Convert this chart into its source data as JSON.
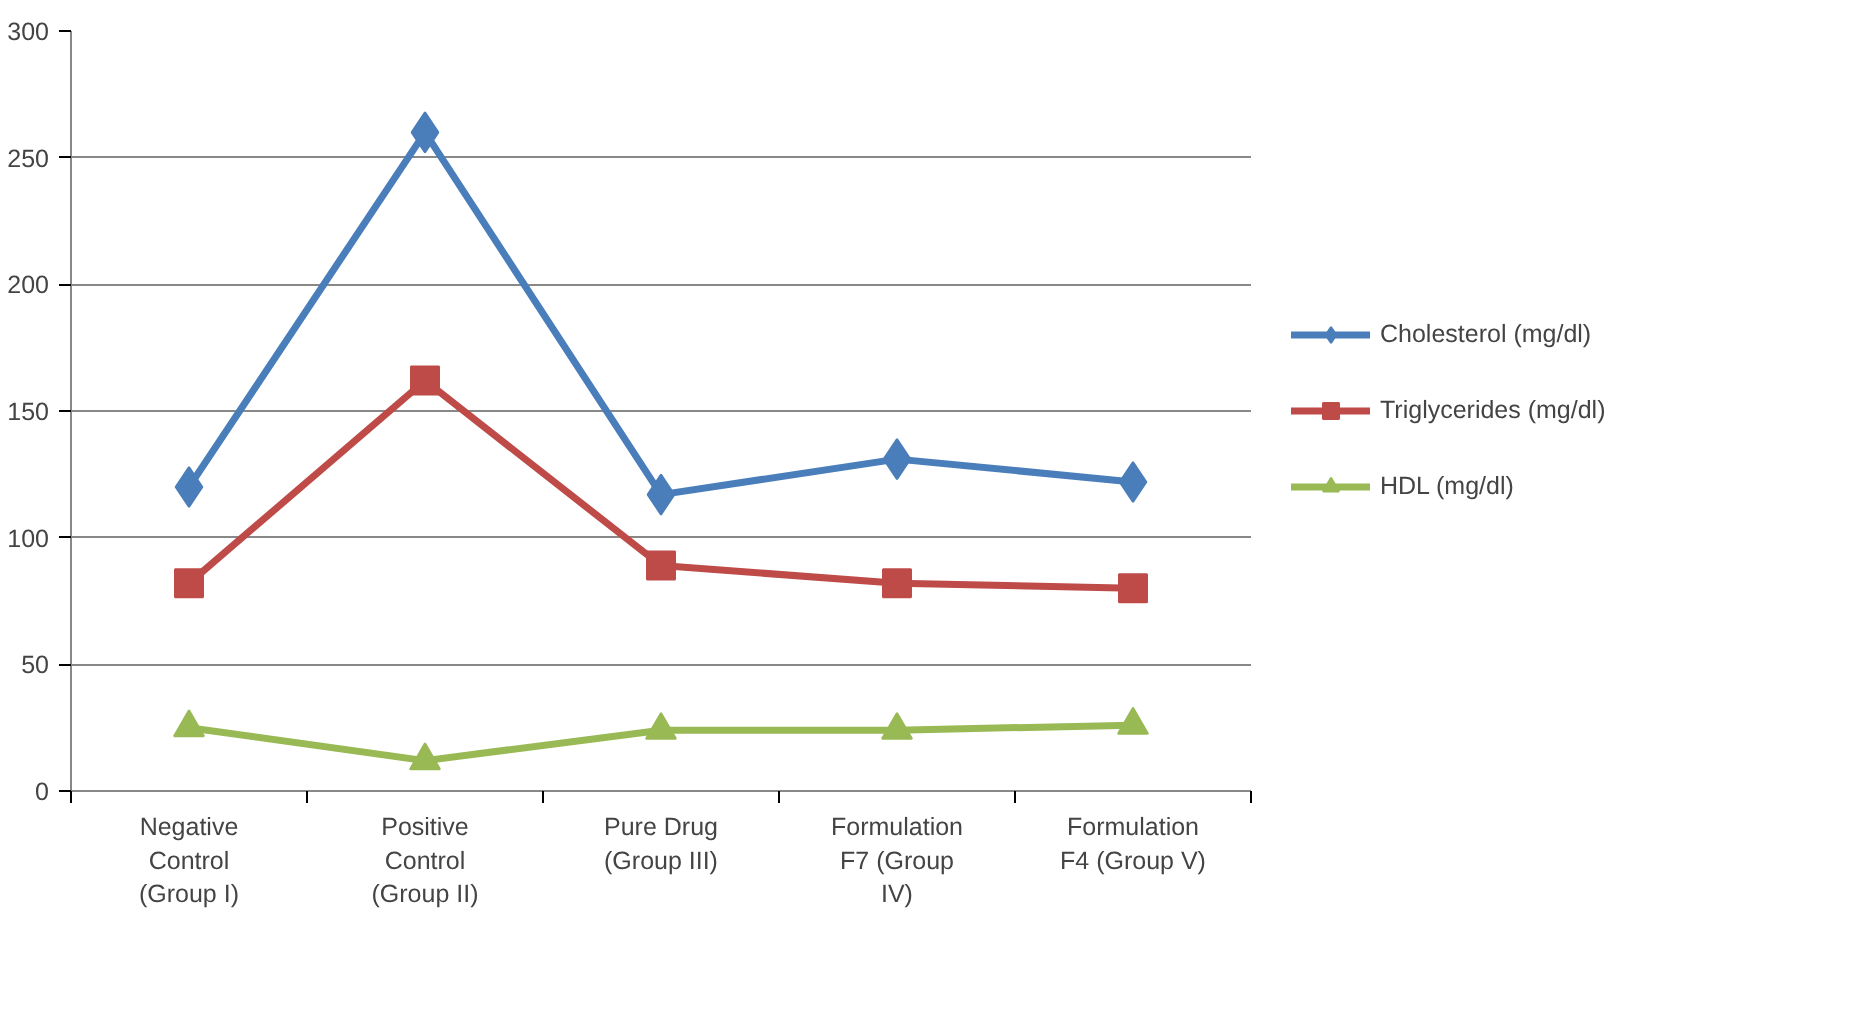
{
  "chart_data": {
    "type": "line",
    "categories": [
      "Negative Control (Group I)",
      "Positive Control (Group II)",
      "Pure Drug (Group III)",
      "Formulation F7 (Group IV)",
      "Formulation F4 (Group V)"
    ],
    "series": [
      {
        "name": "Cholesterol (mg/dl)",
        "color": "#4a7ebb",
        "marker": "diamond",
        "values": [
          120,
          260,
          117,
          131,
          122
        ]
      },
      {
        "name": "Triglycerides (mg/dl)",
        "color": "#be4b48",
        "marker": "square",
        "values": [
          82,
          162,
          89,
          82,
          80
        ]
      },
      {
        "name": "HDL (mg/dl)",
        "color": "#98b954",
        "marker": "triangle",
        "values": [
          25,
          12,
          24,
          24,
          26
        ]
      }
    ],
    "ylim": [
      0,
      300
    ],
    "yticks": [
      0,
      50,
      100,
      150,
      200,
      250,
      300
    ],
    "grid": "y",
    "legend": "right",
    "line_style": "solid"
  }
}
